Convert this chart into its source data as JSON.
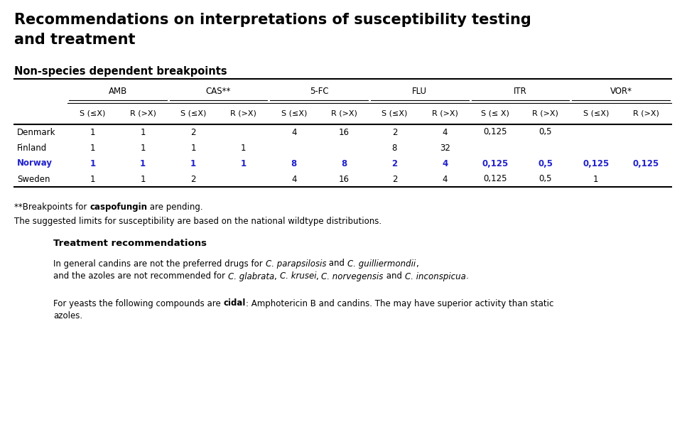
{
  "title_line1": "Recommendations on interpretations of susceptibility testing",
  "title_line2": "and treatment",
  "section_title": "Non-species dependent breakpoints",
  "col_groups": [
    "AMB",
    "CAS**",
    "5-FC",
    "FLU",
    "ITR",
    "VOR*"
  ],
  "col_subheaders": [
    "S (≤X)",
    "R (>X)",
    "S (≤X)",
    "R (>X)",
    "S (≤X)",
    "R (>X)",
    "S (≤X)",
    "R (>X)",
    "S (≤ X)",
    "R (>X)",
    "S (≤X)",
    "R (>X)"
  ],
  "rows": [
    {
      "country": "Denmark",
      "color": "#000000",
      "values": [
        "1",
        "1",
        "2",
        "",
        "4",
        "16",
        "2",
        "4",
        "0,125",
        "0,5",
        "",
        ""
      ]
    },
    {
      "country": "Finland",
      "color": "#000000",
      "values": [
        "1",
        "1",
        "1",
        "1",
        "",
        "",
        "8",
        "32",
        "",
        "",
        "",
        ""
      ]
    },
    {
      "country": "Norway",
      "color": "#2222cc",
      "values": [
        "1",
        "1",
        "1",
        "1",
        "8",
        "8",
        "2",
        "4",
        "0,125",
        "0,5",
        "0,125",
        "0,125"
      ]
    },
    {
      "country": "Sweden",
      "color": "#000000",
      "values": [
        "1",
        "1",
        "2",
        "",
        "4",
        "16",
        "2",
        "4",
        "0,125",
        "0,5",
        "1",
        ""
      ]
    }
  ],
  "footnote1_plain": "**Breakpoints for ",
  "footnote1_bold": "caspofungin",
  "footnote1_end": " are pending.",
  "footnote2": "The suggested limits for susceptibility are based on the national wildtype distributions.",
  "treatment_header": "Treatment recommendations",
  "treatment_line1": "In general candins are not the preferred drugs for C. parapsilosis and C. guilliermondii,",
  "treatment_line1_parts": [
    [
      "In general candins are not the preferred drugs for ",
      false,
      false
    ],
    [
      "C. parapsilosis",
      false,
      true
    ],
    [
      " and ",
      false,
      false
    ],
    [
      "C. guilliermondii",
      false,
      true
    ],
    [
      ",",
      false,
      false
    ]
  ],
  "treatment_line2_parts": [
    [
      "and the azoles are not recommended for ",
      false,
      false
    ],
    [
      "C. glabrata",
      false,
      true
    ],
    [
      ", ",
      false,
      false
    ],
    [
      "C. krusei",
      false,
      true
    ],
    [
      ", ",
      false,
      false
    ],
    [
      "C. norvegensis",
      false,
      true
    ],
    [
      " and ",
      false,
      false
    ],
    [
      "C. inconspicua",
      false,
      true
    ],
    [
      ".",
      false,
      false
    ]
  ],
  "cidal_line1_parts": [
    [
      "For yeasts the following compounds are ",
      false,
      false
    ],
    [
      "cidal",
      true,
      false
    ],
    [
      ": Amphotericin B and candins. The may have superior activity than static",
      false,
      false
    ]
  ],
  "cidal_line2": "azoles.",
  "bg_color": "#ffffff",
  "text_color": "#000000",
  "norway_color": "#2222cc",
  "title_fontsize": 15,
  "section_fontsize": 10.5,
  "table_fontsize": 8.5,
  "footnote_fontsize": 8.5,
  "treatment_fontsize": 8.5
}
